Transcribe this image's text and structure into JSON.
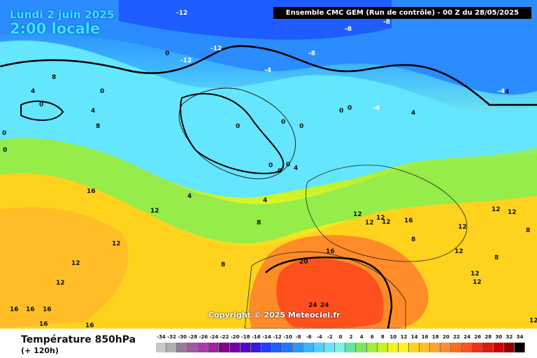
{
  "header": {
    "date": "Lundi 2 juin 2025",
    "time": "2:00 locale",
    "run_info": "Ensemble CMC GEM  (Run de contrôle)  -  00 Z du 28/05/2025"
  },
  "map": {
    "copyright": "Copyright © 2025 Meteociel.fr",
    "labels": [
      "-12",
      "-8",
      "-8",
      "-12",
      "-12",
      "-8",
      "-4",
      "-4",
      "-4",
      "0",
      "0",
      "0",
      "0",
      "0",
      "0",
      "0",
      "0",
      "0",
      "0",
      "0",
      "0",
      "0",
      "4",
      "4",
      "4",
      "4",
      "4",
      "4",
      "4",
      "8",
      "8",
      "8",
      "8",
      "8",
      "8",
      "8",
      "12",
      "12",
      "12",
      "12",
      "12",
      "12",
      "12",
      "12",
      "12",
      "12",
      "12",
      "12",
      "12",
      "12",
      "12",
      "16",
      "16",
      "16",
      "16",
      "16",
      "16",
      "16",
      "16",
      "20",
      "24",
      "24"
    ]
  },
  "footer": {
    "parameter": "Température 850hPa",
    "lead_time": "(+ 120h)"
  },
  "legend": {
    "ticks": [
      "-34",
      "-32",
      "-30",
      "-28",
      "-26",
      "-24",
      "-22",
      "-20",
      "-18",
      "-16",
      "-14",
      "-12",
      "-10",
      "-8",
      "-6",
      "-4",
      "-2",
      "0",
      "2",
      "4",
      "6",
      "8",
      "10",
      "12",
      "14",
      "16",
      "18",
      "20",
      "22",
      "24",
      "26",
      "28",
      "30",
      "32",
      "34"
    ],
    "colors": [
      "#c8c8c8",
      "#b0b0b0",
      "#9a7a9a",
      "#a05aa0",
      "#a83ca8",
      "#a020a0",
      "#880088",
      "#7000a8",
      "#5a00c8",
      "#3a1ae0",
      "#2040ff",
      "#1e5cff",
      "#1e78ff",
      "#2898ff",
      "#3cb4ff",
      "#50d0ff",
      "#64e6ff",
      "#78f5e6",
      "#64e6a0",
      "#7ee65a",
      "#a0f03c",
      "#c8f028",
      "#ecf51e",
      "#fff01e",
      "#ffd21e",
      "#ffbe28",
      "#ffa532",
      "#ff8c28",
      "#ff6e1e",
      "#ff501e",
      "#f03214",
      "#dc1e0a",
      "#c80000",
      "#960000",
      "#000000"
    ],
    "accent_fg": "#35e6ff"
  }
}
